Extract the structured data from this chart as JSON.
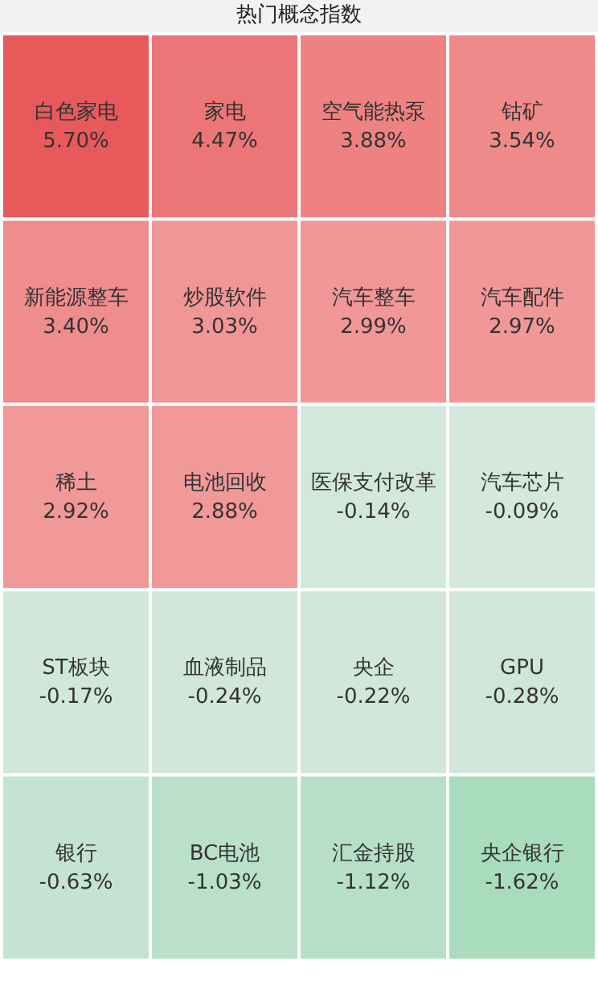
{
  "chart_data": {
    "type": "other",
    "title": "热门概念指数",
    "categories": [
      "白色家电",
      "家电",
      "空气能热泵",
      "钴矿",
      "新能源整车",
      "炒股软件",
      "汽车整车",
      "汽车配件",
      "稀土",
      "电池回收",
      "医保支付改革",
      "汽车芯片",
      "ST板块",
      "血液制品",
      "央企",
      "GPU",
      "银行",
      "BC电池",
      "汇金持股",
      "央企银行"
    ],
    "values": [
      5.7,
      4.47,
      3.88,
      3.54,
      3.4,
      3.03,
      2.99,
      2.97,
      2.92,
      2.88,
      -0.14,
      -0.09,
      -0.17,
      -0.24,
      -0.22,
      -0.28,
      -0.63,
      -1.03,
      -1.12,
      -1.62
    ],
    "value_labels": [
      "5.70%",
      "4.47%",
      "3.88%",
      "3.54%",
      "3.40%",
      "3.03%",
      "2.99%",
      "2.97%",
      "2.92%",
      "2.88%",
      "-0.14%",
      "-0.09%",
      "-0.17%",
      "-0.24%",
      "-0.22%",
      "-0.28%",
      "-0.63%",
      "-1.03%",
      "-1.12%",
      "-1.62%"
    ],
    "colors": [
      "#e8595c",
      "#ec7070",
      "#ee7b7b",
      "#ef8484",
      "#ef8888",
      "#f09090",
      "#f09494",
      "#f09696",
      "#f19898",
      "#f19999",
      "#d3e8dc",
      "#d4e8dd",
      "#d2e7db",
      "#d0e6da",
      "#d0e6da",
      "#cfe6d9",
      "#cbe5d6",
      "#b6dfc6",
      "#b4dfc5",
      "#a9dbbd"
    ]
  }
}
